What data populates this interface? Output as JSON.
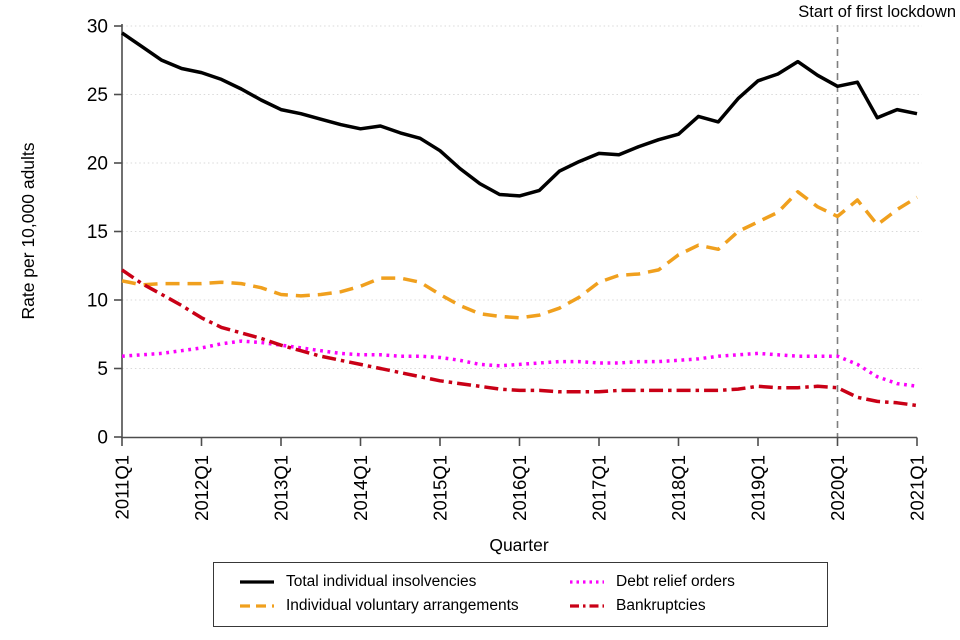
{
  "chart_data": {
    "type": "line",
    "x": [
      "2011Q1",
      "2011Q2",
      "2011Q3",
      "2011Q4",
      "2012Q1",
      "2012Q2",
      "2012Q3",
      "2012Q4",
      "2013Q1",
      "2013Q2",
      "2013Q3",
      "2013Q4",
      "2014Q1",
      "2014Q2",
      "2014Q3",
      "2014Q4",
      "2015Q1",
      "2015Q2",
      "2015Q3",
      "2015Q4",
      "2016Q1",
      "2016Q2",
      "2016Q3",
      "2016Q4",
      "2017Q1",
      "2017Q2",
      "2017Q3",
      "2017Q4",
      "2018Q1",
      "2018Q2",
      "2018Q3",
      "2018Q4",
      "2019Q1",
      "2019Q2",
      "2019Q3",
      "2019Q4",
      "2020Q1",
      "2020Q2",
      "2020Q3",
      "2020Q4",
      "2021Q1"
    ],
    "xtick_every": 4,
    "xlabel": "Quarter",
    "ylabel": "Rate per 10,000 adults",
    "ylim": [
      0,
      30
    ],
    "yticks": [
      0,
      5,
      10,
      15,
      20,
      25,
      30
    ],
    "grid": "horizontal-dotted",
    "legend_position": "bottom",
    "vline": {
      "x": "2020Q1",
      "label": "Start of first lockdown",
      "color": "#7F7F7F",
      "style": "dashed"
    },
    "series": [
      {
        "name": "Total individual insolvencies",
        "color": "#000000",
        "style": "solid",
        "values": [
          29.5,
          28.5,
          27.5,
          26.9,
          26.6,
          26.1,
          25.4,
          24.6,
          23.9,
          23.6,
          23.2,
          22.8,
          22.5,
          22.7,
          22.2,
          21.8,
          20.9,
          19.6,
          18.5,
          17.7,
          17.6,
          18.0,
          19.4,
          20.1,
          20.7,
          20.6,
          21.2,
          21.7,
          22.1,
          23.4,
          23.0,
          24.7,
          26.0,
          26.5,
          27.4,
          26.4,
          25.6,
          25.9,
          23.3,
          23.9,
          23.6
        ]
      },
      {
        "name": "Individual voluntary arrangements",
        "color": "#F0A01E",
        "style": "dashed",
        "values": [
          11.4,
          11.1,
          11.2,
          11.2,
          11.2,
          11.3,
          11.2,
          10.9,
          10.4,
          10.3,
          10.4,
          10.6,
          11.0,
          11.6,
          11.6,
          11.3,
          10.4,
          9.6,
          9.0,
          8.8,
          8.7,
          8.9,
          9.4,
          10.2,
          11.3,
          11.8,
          11.9,
          12.2,
          13.3,
          14.0,
          13.7,
          15.0,
          15.7,
          16.4,
          17.9,
          16.8,
          16.1,
          17.3,
          15.5,
          16.6,
          17.5
        ]
      },
      {
        "name": "Debt relief orders",
        "color": "#FB02FB",
        "style": "dotted",
        "values": [
          5.9,
          6.0,
          6.1,
          6.3,
          6.5,
          6.8,
          7.0,
          6.9,
          6.7,
          6.5,
          6.3,
          6.1,
          6.0,
          6.0,
          5.9,
          5.9,
          5.8,
          5.6,
          5.3,
          5.2,
          5.3,
          5.4,
          5.5,
          5.5,
          5.4,
          5.4,
          5.5,
          5.5,
          5.6,
          5.7,
          5.9,
          6.0,
          6.1,
          6.0,
          5.9,
          5.9,
          5.9,
          5.3,
          4.4,
          3.9,
          3.7
        ]
      },
      {
        "name": "Bankruptcies",
        "color": "#C90016",
        "style": "dashdot",
        "values": [
          12.2,
          11.2,
          10.4,
          9.6,
          8.7,
          8.0,
          7.6,
          7.2,
          6.7,
          6.3,
          5.9,
          5.6,
          5.3,
          5.0,
          4.7,
          4.4,
          4.1,
          3.9,
          3.7,
          3.5,
          3.4,
          3.4,
          3.3,
          3.3,
          3.3,
          3.4,
          3.4,
          3.4,
          3.4,
          3.4,
          3.4,
          3.5,
          3.7,
          3.6,
          3.6,
          3.7,
          3.6,
          2.9,
          2.6,
          2.5,
          2.3
        ]
      }
    ]
  },
  "legend": {
    "items": [
      {
        "label": "Total individual insolvencies"
      },
      {
        "label": "Individual voluntary arrangements"
      },
      {
        "label": "Debt relief orders"
      },
      {
        "label": "Bankruptcies"
      }
    ]
  }
}
